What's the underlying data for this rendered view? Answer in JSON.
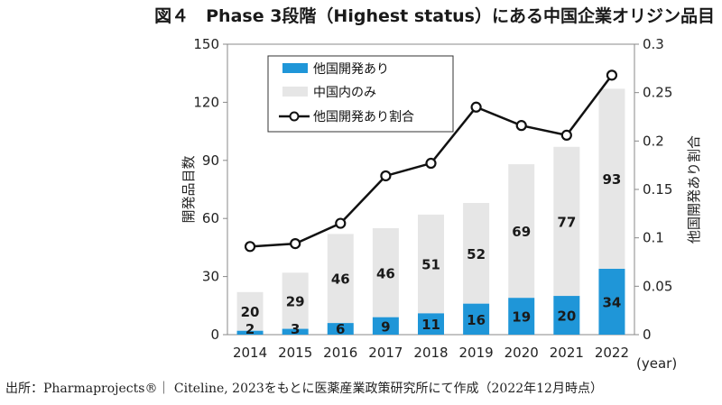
{
  "title": "図４　Phase 3段階（Highest status）にある中国企業オリジン品目",
  "source": "出所：Pharmaprojects®｜ Citeline, 2023をもとに医薬産業政策研究所にて作成（2022年12月時点）",
  "colors": {
    "overseas": "#1f96d8",
    "domestic": "#e6e6e6",
    "line": "#111111",
    "axis": "#888888"
  },
  "chart_data": {
    "type": "bar",
    "stacked": true,
    "title": "Phase 3段階（Highest status）にある中国企業オリジン品目",
    "categories": [
      "2014",
      "2015",
      "2016",
      "2017",
      "2018",
      "2019",
      "2020",
      "2021",
      "2022"
    ],
    "x_unit": "(year)",
    "series": [
      {
        "name": "他国開発あり",
        "kind": "bar",
        "axis": "left",
        "values": [
          2,
          3,
          6,
          9,
          11,
          16,
          19,
          20,
          34
        ]
      },
      {
        "name": "中国内のみ",
        "kind": "bar",
        "axis": "left",
        "values": [
          20,
          29,
          46,
          46,
          51,
          52,
          69,
          77,
          93
        ]
      },
      {
        "name": "他国開発あり割合",
        "kind": "line",
        "axis": "right",
        "values": [
          0.091,
          0.094,
          0.115,
          0.164,
          0.177,
          0.235,
          0.216,
          0.206,
          0.268
        ]
      }
    ],
    "ylabel": "開発品目数",
    "ylabel_right": "他国開発あり割合",
    "ylim": [
      0,
      150
    ],
    "yticks": [
      "0",
      "30",
      "60",
      "90",
      "120",
      "150"
    ],
    "ylim_right": [
      0,
      0.3
    ],
    "yticks_right": [
      "0",
      "0.05",
      "0.1",
      "0.15",
      "0.2",
      "0.25",
      "0.3"
    ],
    "legend_position": "top-left"
  }
}
